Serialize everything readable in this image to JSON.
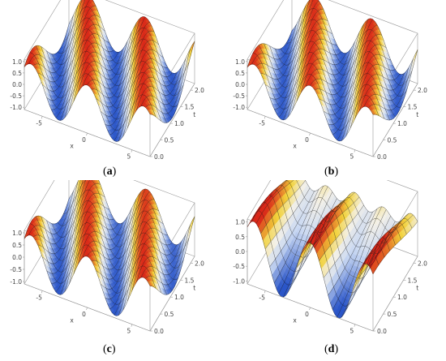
{
  "panels": [
    {
      "caption_open": "(",
      "caption_letter": "a",
      "caption_close": ")",
      "x_label": "x",
      "t_label": "t",
      "z_ticks": [
        "1.0",
        "0.5",
        "0.0",
        "-0.5",
        "-1.0"
      ],
      "x_ticks": [
        "-5",
        "0",
        "5"
      ],
      "t_ticks": [
        "0.0",
        "0.5",
        "1.0",
        "1.5",
        "2.0"
      ]
    },
    {
      "caption_open": "(",
      "caption_letter": "b",
      "caption_close": ")",
      "x_label": "x",
      "t_label": "t",
      "z_ticks": [
        "1.0",
        "0.5",
        "0.0",
        "-0.5",
        "-1.0"
      ],
      "x_ticks": [
        "-5",
        "0",
        "5"
      ],
      "t_ticks": [
        "0.0",
        "0.5",
        "1.0",
        "1.5",
        "2.0"
      ]
    },
    {
      "caption_open": "(",
      "caption_letter": "c",
      "caption_close": ")",
      "x_label": "x",
      "t_label": "t",
      "z_ticks": [
        "1.0",
        "0.5",
        "0.0",
        "-0.5",
        "-1.0"
      ],
      "x_ticks": [
        "-5",
        "0",
        "5"
      ],
      "t_ticks": [
        "0.0",
        "0.5",
        "1.0",
        "1.5",
        "2.0"
      ]
    },
    {
      "caption_open": "(",
      "caption_letter": "d",
      "caption_close": ")",
      "x_label": "x",
      "t_label": "t",
      "z_ticks": [
        "1.0",
        "0.5",
        "0.0",
        "-0.5",
        "-1.0"
      ],
      "x_ticks": [
        "-5",
        "0",
        "5"
      ],
      "t_ticks": [
        "0.0",
        "0.5",
        "1.0",
        "1.5",
        "2.0"
      ]
    }
  ],
  "colors": {
    "low": "#2a55c8",
    "mid_low": "#c9d8f2",
    "mid": "#f4f1e8",
    "mid_high": "#f2d23a",
    "high": "#d92618",
    "box": "#9a9a9a",
    "mesh": "#1a1a1a",
    "tick_text": "#444444"
  }
}
